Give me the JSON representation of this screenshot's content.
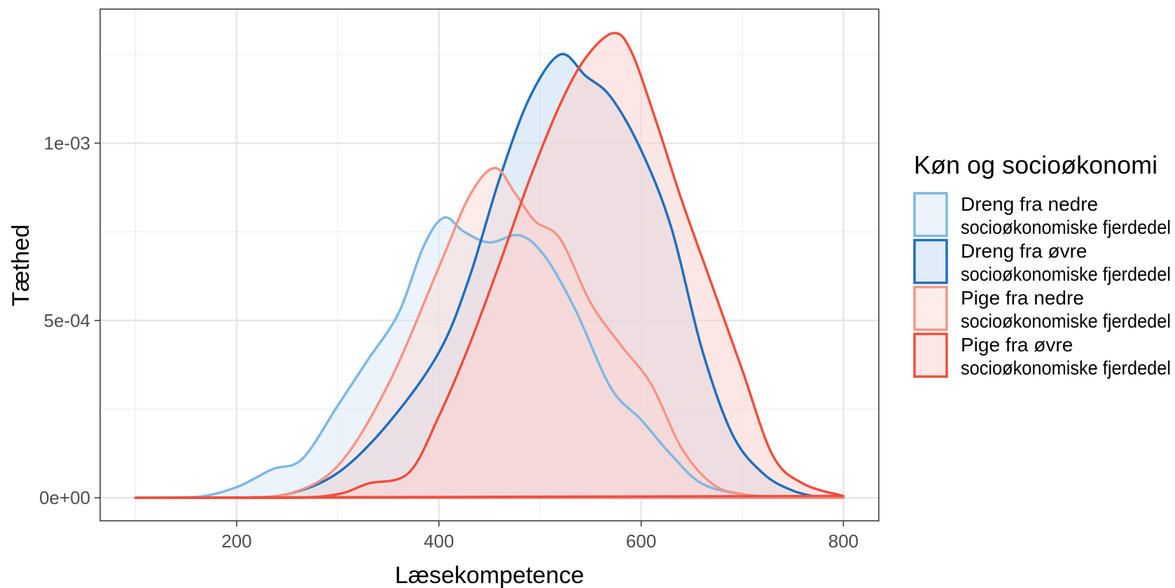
{
  "chart_data": {
    "type": "area",
    "xlabel": "Læsekompetence",
    "ylabel": "Tæthed",
    "xlim": [
      65,
      835
    ],
    "ylim": [
      -6.5e-05,
      0.001378
    ],
    "x_ticks": [
      200,
      400,
      600,
      800
    ],
    "x_tick_labels": [
      "200",
      "400",
      "600",
      "800"
    ],
    "y_ticks": [
      0,
      0.0005,
      0.001
    ],
    "y_tick_labels": [
      "0e+00",
      "5e-04",
      "1e-03"
    ],
    "grid": true,
    "legend": {
      "title": "Køn og socioøkonomi",
      "placement": "right",
      "entries": [
        {
          "line1": "Dreng fra nedre",
          "line2": "socioøkonomiske fjerdedel"
        },
        {
          "line1": "Dreng fra øvre",
          "line2": "socioøkonomiske fjerdedel"
        },
        {
          "line1": "Pige fra nedre",
          "line2": "socioøkonomiske fjerdedel"
        },
        {
          "line1": "Pige fra øvre",
          "line2": "socioøkonomiske fjerdedel"
        }
      ]
    },
    "series": [
      {
        "name": "Dreng fra nedre socioøkonomiske fjerdedel",
        "color": "#7fb8e3",
        "fill": "#dbe9f8",
        "points": [
          [
            100,
            0
          ],
          [
            160,
            2e-06
          ],
          [
            200,
            3e-05
          ],
          [
            235,
            8e-05
          ],
          [
            265,
            0.00011
          ],
          [
            300,
            0.00026
          ],
          [
            330,
            0.00039
          ],
          [
            360,
            0.00052
          ],
          [
            385,
            0.00071
          ],
          [
            405,
            0.00079
          ],
          [
            425,
            0.00075
          ],
          [
            450,
            0.00072
          ],
          [
            480,
            0.00074
          ],
          [
            505,
            0.00068
          ],
          [
            535,
            0.00053
          ],
          [
            570,
            0.00031
          ],
          [
            600,
            0.00022
          ],
          [
            630,
            0.00012
          ],
          [
            660,
            4e-05
          ],
          [
            700,
            1e-05
          ],
          [
            750,
            0
          ],
          [
            800,
            0
          ]
        ]
      },
      {
        "name": "Dreng fra øvre socioøkonomiske fjerdedel",
        "color": "#1f6fbf",
        "fill": "#c7dcf1",
        "points": [
          [
            100,
            0
          ],
          [
            200,
            0
          ],
          [
            250,
            1e-05
          ],
          [
            300,
            7e-05
          ],
          [
            350,
            0.00021
          ],
          [
            400,
            0.00041
          ],
          [
            430,
            0.00062
          ],
          [
            460,
            0.0009
          ],
          [
            490,
            0.00113
          ],
          [
            520,
            0.00125
          ],
          [
            545,
            0.00119
          ],
          [
            570,
            0.00113
          ],
          [
            600,
            0.00098
          ],
          [
            630,
            0.00076
          ],
          [
            660,
            0.00042
          ],
          [
            690,
            0.00018
          ],
          [
            720,
            7e-05
          ],
          [
            750,
            2e-05
          ],
          [
            780,
            0
          ],
          [
            800,
            0
          ]
        ]
      },
      {
        "name": "Pige fra nedre socioøkonomiske fjerdedel",
        "color": "#f5958a",
        "fill": "#fadcd9",
        "points": [
          [
            100,
            0
          ],
          [
            200,
            0
          ],
          [
            250,
            1e-05
          ],
          [
            300,
            9e-05
          ],
          [
            350,
            0.00032
          ],
          [
            400,
            0.00065
          ],
          [
            430,
            0.00085
          ],
          [
            455,
            0.00093
          ],
          [
            475,
            0.00086
          ],
          [
            495,
            0.00078
          ],
          [
            520,
            0.00073
          ],
          [
            550,
            0.00055
          ],
          [
            580,
            0.00043
          ],
          [
            610,
            0.00032
          ],
          [
            640,
            0.00014
          ],
          [
            670,
            4e-05
          ],
          [
            700,
            1e-05
          ],
          [
            750,
            0
          ],
          [
            800,
            0
          ]
        ]
      },
      {
        "name": "Pige fra øvre socioøkonomiske fjerdedel",
        "color": "#f04e3e",
        "fill": "#fbd3cf",
        "points": [
          [
            100,
            0
          ],
          [
            250,
            0
          ],
          [
            300,
            1e-05
          ],
          [
            330,
            4e-05
          ],
          [
            370,
            7e-05
          ],
          [
            400,
            0.00023
          ],
          [
            430,
            0.00043
          ],
          [
            460,
            0.00066
          ],
          [
            490,
            0.0009
          ],
          [
            520,
            0.00111
          ],
          [
            545,
            0.00124
          ],
          [
            572,
            0.00131
          ],
          [
            590,
            0.00126
          ],
          [
            615,
            0.00106
          ],
          [
            640,
            0.00084
          ],
          [
            670,
            0.0006
          ],
          [
            700,
            0.00036
          ],
          [
            730,
            0.00012
          ],
          [
            760,
            4e-05
          ],
          [
            800,
            5e-06
          ]
        ]
      }
    ]
  }
}
